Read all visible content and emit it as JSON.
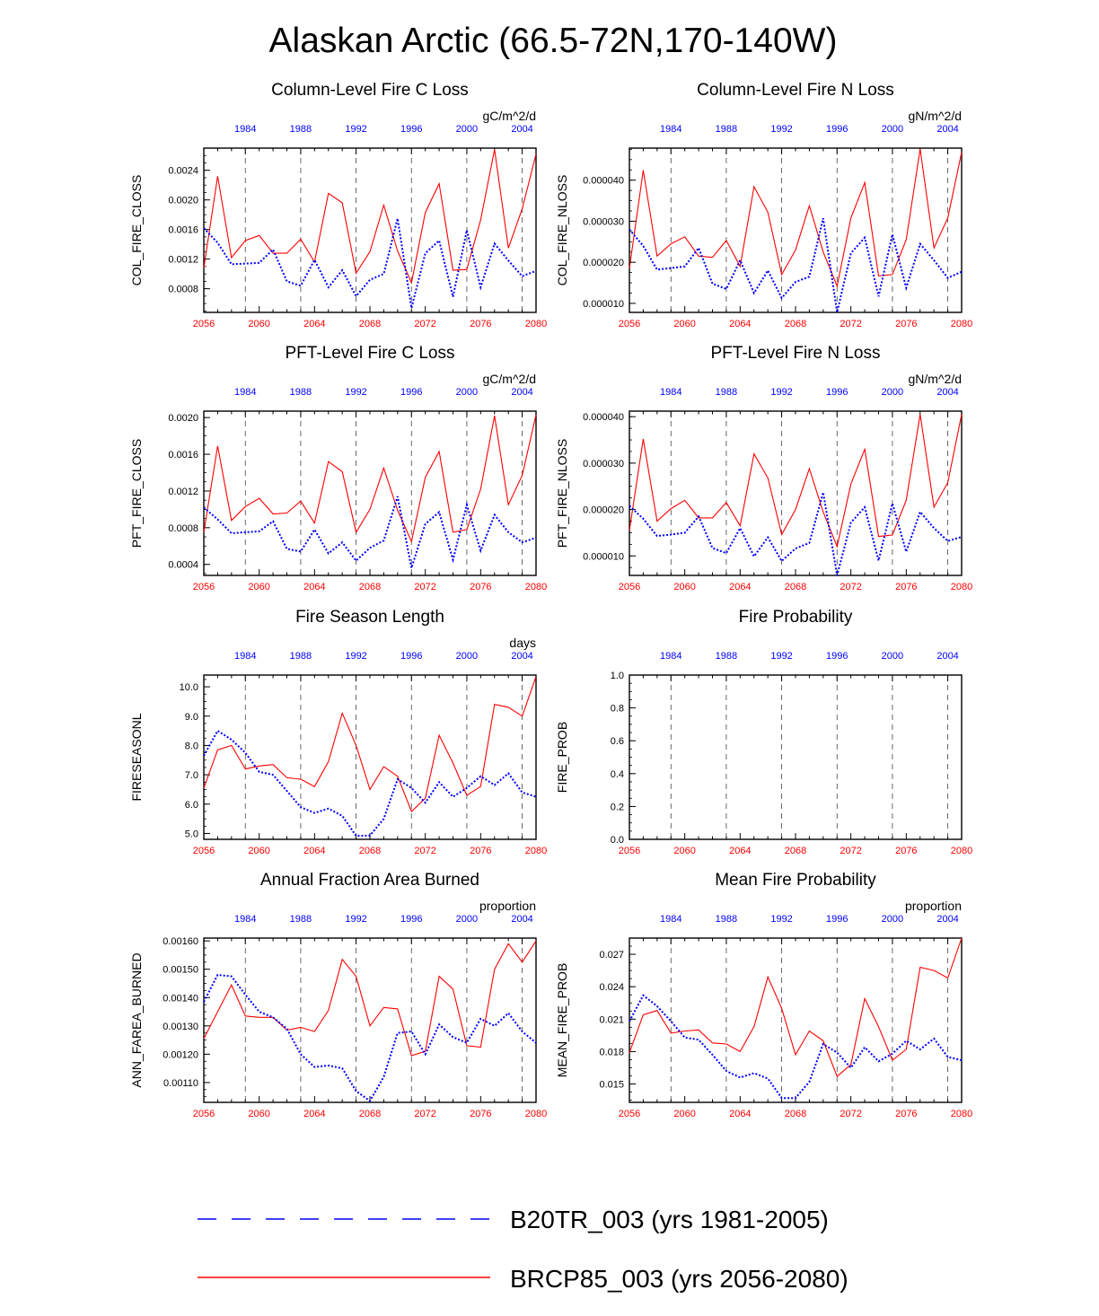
{
  "figure_title": "Alaskan Arctic (66.5-72N,170-140W)",
  "legend": [
    {
      "label": "B20TR_003 (yrs 1981-2005)",
      "color": "#0000ff",
      "style": "dashed"
    },
    {
      "label": "BRCP85_003 (yrs 2056-2080)",
      "color": "#ff0000",
      "style": "solid"
    }
  ],
  "colors": {
    "hist": "#0000ff",
    "future": "#ff0000"
  },
  "chart_data": [
    {
      "type": "line",
      "title": "Column-Level Fire C Loss",
      "units": "gC/m^2/d",
      "ylabel": "COL_FIRE_CLOSS",
      "ylim": [
        0.00048,
        0.0027
      ],
      "yticks": [
        "0.0008",
        "0.0012",
        "0.0016",
        "0.0020",
        "0.0024"
      ],
      "x_bottom": {
        "range": [
          2056,
          2080
        ],
        "ticks": [
          "2056",
          "2060",
          "2064",
          "2068",
          "2072",
          "2076",
          "2080"
        ]
      },
      "x_top": {
        "range": [
          1981,
          2005
        ],
        "ticks": [
          "1984",
          "1988",
          "1992",
          "1996",
          "2000",
          "2004"
        ]
      },
      "series": [
        {
          "name": "BRCP85_003 (yrs 2056-2080)",
          "axis": "bottom",
          "x_start": 2056,
          "values": [
            0.00108,
            0.00232,
            0.00122,
            0.00145,
            0.00152,
            0.00128,
            0.00128,
            0.00147,
            0.00116,
            0.00209,
            0.00196,
            0.00101,
            0.0013,
            0.00193,
            0.00131,
            0.00088,
            0.00183,
            0.00222,
            0.00105,
            0.00106,
            0.00173,
            0.00268,
            0.00135,
            0.00188,
            0.00262
          ]
        },
        {
          "name": "B20TR_003 (yrs 1981-2005)",
          "axis": "top",
          "x_start": 1981,
          "values": [
            0.00162,
            0.00142,
            0.00113,
            0.00114,
            0.00115,
            0.00133,
            0.0009,
            0.00084,
            0.00119,
            0.00082,
            0.00105,
            0.0007,
            0.00092,
            0.001,
            0.00175,
            0.00054,
            0.00128,
            0.00145,
            0.00069,
            0.00159,
            0.00082,
            0.00141,
            0.00118,
            0.00097,
            0.00104
          ]
        }
      ]
    },
    {
      "type": "line",
      "title": "Column-Level Fire N Loss",
      "units": "gN/m^2/d",
      "ylabel": "COL_FIRE_NLOSS",
      "ylim": [
        7.8e-06,
        4.78e-05
      ],
      "yticks": [
        "0.000010",
        "0.000020",
        "0.000030",
        "0.000040"
      ],
      "x_bottom": {
        "range": [
          2056,
          2080
        ],
        "ticks": [
          "2056",
          "2060",
          "2064",
          "2068",
          "2072",
          "2076",
          "2080"
        ]
      },
      "x_top": {
        "range": [
          1981,
          2005
        ],
        "ticks": [
          "1984",
          "1988",
          "1992",
          "1996",
          "2000",
          "2004"
        ]
      },
      "series": [
        {
          "name": "BRCP85_003 (yrs 2056-2080)",
          "axis": "bottom",
          "x_start": 2056,
          "values": [
            1.85e-05,
            4.24e-05,
            2.15e-05,
            2.45e-05,
            2.62e-05,
            2.15e-05,
            2.12e-05,
            2.53e-05,
            1.9e-05,
            3.84e-05,
            3.22e-05,
            1.7e-05,
            2.3e-05,
            3.38e-05,
            2.25e-05,
            1.42e-05,
            3.08e-05,
            3.94e-05,
            1.67e-05,
            1.7e-05,
            2.55e-05,
            4.76e-05,
            2.35e-05,
            3.08e-05,
            4.68e-05
          ]
        },
        {
          "name": "B20TR_003 (yrs 1981-2005)",
          "axis": "top",
          "x_start": 1981,
          "values": [
            2.8e-05,
            2.4e-05,
            1.82e-05,
            1.86e-05,
            1.9e-05,
            2.35e-05,
            1.48e-05,
            1.35e-05,
            2.05e-05,
            1.25e-05,
            1.8e-05,
            1.13e-05,
            1.52e-05,
            1.65e-05,
            3.07e-05,
            7.8e-06,
            2.22e-05,
            2.6e-05,
            1.17e-05,
            2.68e-05,
            1.38e-05,
            2.45e-05,
            2.05e-05,
            1.62e-05,
            1.77e-05
          ]
        }
      ]
    },
    {
      "type": "line",
      "title": "PFT-Level Fire C Loss",
      "units": "gC/m^2/d",
      "ylabel": "PFT_FIRE_CLOSS",
      "ylim": [
        0.00028,
        0.00207
      ],
      "yticks": [
        "0.0004",
        "0.0008",
        "0.0012",
        "0.0016",
        "0.0020"
      ],
      "x_bottom": {
        "range": [
          2056,
          2080
        ],
        "ticks": [
          "2056",
          "2060",
          "2064",
          "2068",
          "2072",
          "2076",
          "2080"
        ]
      },
      "x_top": {
        "range": [
          1981,
          2005
        ],
        "ticks": [
          "1984",
          "1988",
          "1992",
          "1996",
          "2000",
          "2004"
        ]
      },
      "series": [
        {
          "name": "BRCP85_003 (yrs 2056-2080)",
          "axis": "bottom",
          "x_start": 2056,
          "values": [
            0.00075,
            0.00169,
            0.00088,
            0.00103,
            0.00112,
            0.00095,
            0.00096,
            0.00109,
            0.00085,
            0.00152,
            0.00141,
            0.00075,
            0.001,
            0.00145,
            0.00099,
            0.00065,
            0.00135,
            0.00163,
            0.00075,
            0.00078,
            0.00122,
            0.00202,
            0.00105,
            0.00137,
            0.00203
          ]
        },
        {
          "name": "B20TR_003 (yrs 1981-2005)",
          "axis": "top",
          "x_start": 1981,
          "values": [
            0.00102,
            0.00089,
            0.00074,
            0.00075,
            0.00076,
            0.00087,
            0.00057,
            0.00054,
            0.00078,
            0.00052,
            0.00064,
            0.00044,
            0.00058,
            0.00066,
            0.00114,
            0.00036,
            0.00084,
            0.00097,
            0.00045,
            0.00105,
            0.00055,
            0.00094,
            0.00075,
            0.00064,
            0.00069
          ]
        }
      ]
    },
    {
      "type": "line",
      "title": "PFT-Level Fire N Loss",
      "units": "gN/m^2/d",
      "ylabel": "PFT_FIRE_NLOSS",
      "ylim": [
        5.8e-06,
        4.12e-05
      ],
      "yticks": [
        "0.000010",
        "0.000020",
        "0.000030",
        "0.000040"
      ],
      "x_bottom": {
        "range": [
          2056,
          2080
        ],
        "ticks": [
          "2056",
          "2060",
          "2064",
          "2068",
          "2072",
          "2076",
          "2080"
        ]
      },
      "x_top": {
        "range": [
          1981,
          2005
        ],
        "ticks": [
          "1984",
          "1988",
          "1992",
          "1996",
          "2000",
          "2004"
        ]
      },
      "series": [
        {
          "name": "BRCP85_003 (yrs 2056-2080)",
          "axis": "bottom",
          "x_start": 2056,
          "values": [
            1.55e-05,
            3.52e-05,
            1.75e-05,
            2.02e-05,
            2.2e-05,
            1.82e-05,
            1.82e-05,
            2.15e-05,
            1.65e-05,
            3.2e-05,
            2.68e-05,
            1.46e-05,
            2e-05,
            2.88e-05,
            1.95e-05,
            1.2e-05,
            2.55e-05,
            3.3e-05,
            1.42e-05,
            1.45e-05,
            2.2e-05,
            4.05e-05,
            2.05e-05,
            2.58e-05,
            4.05e-05
          ]
        },
        {
          "name": "B20TR_003 (yrs 1981-2005)",
          "axis": "top",
          "x_start": 1981,
          "values": [
            2.08e-05,
            1.8e-05,
            1.43e-05,
            1.46e-05,
            1.5e-05,
            1.85e-05,
            1.17e-05,
            1.06e-05,
            1.6e-05,
            9.9e-06,
            1.4e-05,
            8.9e-06,
            1.16e-05,
            1.28e-05,
            2.37e-05,
            5.8e-06,
            1.72e-05,
            2.05e-05,
            9e-06,
            2.13e-05,
            1.09e-05,
            1.95e-05,
            1.6e-05,
            1.32e-05,
            1.41e-05
          ]
        }
      ]
    },
    {
      "type": "line",
      "title": "Fire Season Length",
      "units": "days",
      "ylabel": "FIRESEASONL",
      "ylim": [
        4.8,
        10.4
      ],
      "yticks": [
        "5.0",
        "6.0",
        "7.0",
        "8.0",
        "9.0",
        "10.0"
      ],
      "x_bottom": {
        "range": [
          2056,
          2080
        ],
        "ticks": [
          "2056",
          "2060",
          "2064",
          "2068",
          "2072",
          "2076",
          "2080"
        ]
      },
      "x_top": {
        "range": [
          1981,
          2005
        ],
        "ticks": [
          "1984",
          "1988",
          "1992",
          "1996",
          "2000",
          "2004"
        ]
      },
      "series": [
        {
          "name": "BRCP85_003 (yrs 2056-2080)",
          "axis": "bottom",
          "x_start": 2056,
          "values": [
            6.55,
            7.85,
            8.0,
            7.2,
            7.3,
            7.35,
            6.9,
            6.85,
            6.6,
            7.45,
            9.1,
            8.0,
            6.5,
            7.28,
            6.95,
            5.75,
            6.2,
            8.35,
            7.4,
            6.3,
            6.6,
            9.4,
            9.3,
            9.0,
            10.35
          ]
        },
        {
          "name": "B20TR_003 (yrs 1981-2005)",
          "axis": "top",
          "x_start": 1981,
          "values": [
            7.65,
            8.5,
            8.2,
            7.75,
            7.1,
            7.0,
            6.45,
            5.9,
            5.7,
            5.85,
            5.6,
            4.92,
            4.93,
            5.5,
            6.85,
            6.55,
            6.05,
            6.75,
            6.25,
            6.55,
            6.95,
            6.65,
            7.05,
            6.4,
            6.25
          ]
        }
      ]
    },
    {
      "type": "line",
      "title": "Fire Probability",
      "units": "",
      "ylabel": "FIRE_PROB",
      "ylim": [
        0.0,
        1.0
      ],
      "yticks": [
        "0.0",
        "0.2",
        "0.4",
        "0.6",
        "0.8",
        "1.0"
      ],
      "x_bottom": {
        "range": [
          2056,
          2080
        ],
        "ticks": [
          "2056",
          "2060",
          "2064",
          "2068",
          "2072",
          "2076",
          "2080"
        ]
      },
      "x_top": {
        "range": [
          1981,
          2005
        ],
        "ticks": [
          "1984",
          "1988",
          "1992",
          "1996",
          "2000",
          "2004"
        ]
      },
      "series": []
    },
    {
      "type": "line",
      "title": "Annual Fraction Area Burned",
      "units": "proportion",
      "ylabel": "ANN_FAREA_BURNED",
      "ylim": [
        0.00103,
        0.00161
      ],
      "yticks": [
        "0.00110",
        "0.00120",
        "0.00130",
        "0.00140",
        "0.00150",
        "0.00160"
      ],
      "x_bottom": {
        "range": [
          2056,
          2080
        ],
        "ticks": [
          "2056",
          "2060",
          "2064",
          "2068",
          "2072",
          "2076",
          "2080"
        ]
      },
      "x_top": {
        "range": [
          1981,
          2005
        ],
        "ticks": [
          "1984",
          "1988",
          "1992",
          "1996",
          "2000",
          "2004"
        ]
      },
      "series": [
        {
          "name": "BRCP85_003 (yrs 2056-2080)",
          "axis": "bottom",
          "x_start": 2056,
          "values": [
            0.001255,
            0.00135,
            0.001445,
            0.001335,
            0.00133,
            0.00133,
            0.001285,
            0.001295,
            0.00128,
            0.001355,
            0.001535,
            0.001475,
            0.0013,
            0.001365,
            0.00136,
            0.001195,
            0.00121,
            0.001475,
            0.00143,
            0.00123,
            0.001225,
            0.0015,
            0.00159,
            0.001525,
            0.0016
          ]
        },
        {
          "name": "B20TR_003 (yrs 1981-2005)",
          "axis": "top",
          "x_start": 1981,
          "values": [
            0.001385,
            0.00148,
            0.001475,
            0.00141,
            0.00135,
            0.00133,
            0.00129,
            0.0012,
            0.001155,
            0.00116,
            0.00115,
            0.00107,
            0.001035,
            0.00112,
            0.001275,
            0.00128,
            0.0012,
            0.001305,
            0.00126,
            0.00124,
            0.001325,
            0.0013,
            0.001345,
            0.00128,
            0.00124
          ]
        }
      ]
    },
    {
      "type": "line",
      "title": "Mean Fire Probability",
      "units": "proportion",
      "ylabel": "MEAN_FIRE_PROB",
      "ylim": [
        0.0133,
        0.0285
      ],
      "yticks": [
        "0.015",
        "0.018",
        "0.021",
        "0.024",
        "0.027"
      ],
      "x_bottom": {
        "range": [
          2056,
          2080
        ],
        "ticks": [
          "2056",
          "2060",
          "2064",
          "2068",
          "2072",
          "2076",
          "2080"
        ]
      },
      "x_top": {
        "range": [
          1981,
          2005
        ],
        "ticks": [
          "1984",
          "1988",
          "1992",
          "1996",
          "2000",
          "2004"
        ]
      },
      "series": [
        {
          "name": "BRCP85_003 (yrs 2056-2080)",
          "axis": "bottom",
          "x_start": 2056,
          "values": [
            0.0179,
            0.0214,
            0.0218,
            0.0197,
            0.0199,
            0.02,
            0.0188,
            0.0187,
            0.018,
            0.0203,
            0.0249,
            0.022,
            0.0177,
            0.0199,
            0.019,
            0.0157,
            0.0168,
            0.0229,
            0.0203,
            0.0172,
            0.0182,
            0.0258,
            0.0255,
            0.0248,
            0.0285
          ]
        },
        {
          "name": "B20TR_003 (yrs 1981-2005)",
          "axis": "top",
          "x_start": 1981,
          "values": [
            0.0208,
            0.0232,
            0.0222,
            0.0208,
            0.0193,
            0.0191,
            0.0177,
            0.0162,
            0.0156,
            0.016,
            0.0155,
            0.0137,
            0.0137,
            0.0152,
            0.0187,
            0.0179,
            0.0165,
            0.0184,
            0.0171,
            0.0178,
            0.019,
            0.0182,
            0.0192,
            0.0175,
            0.0172
          ]
        }
      ]
    }
  ]
}
